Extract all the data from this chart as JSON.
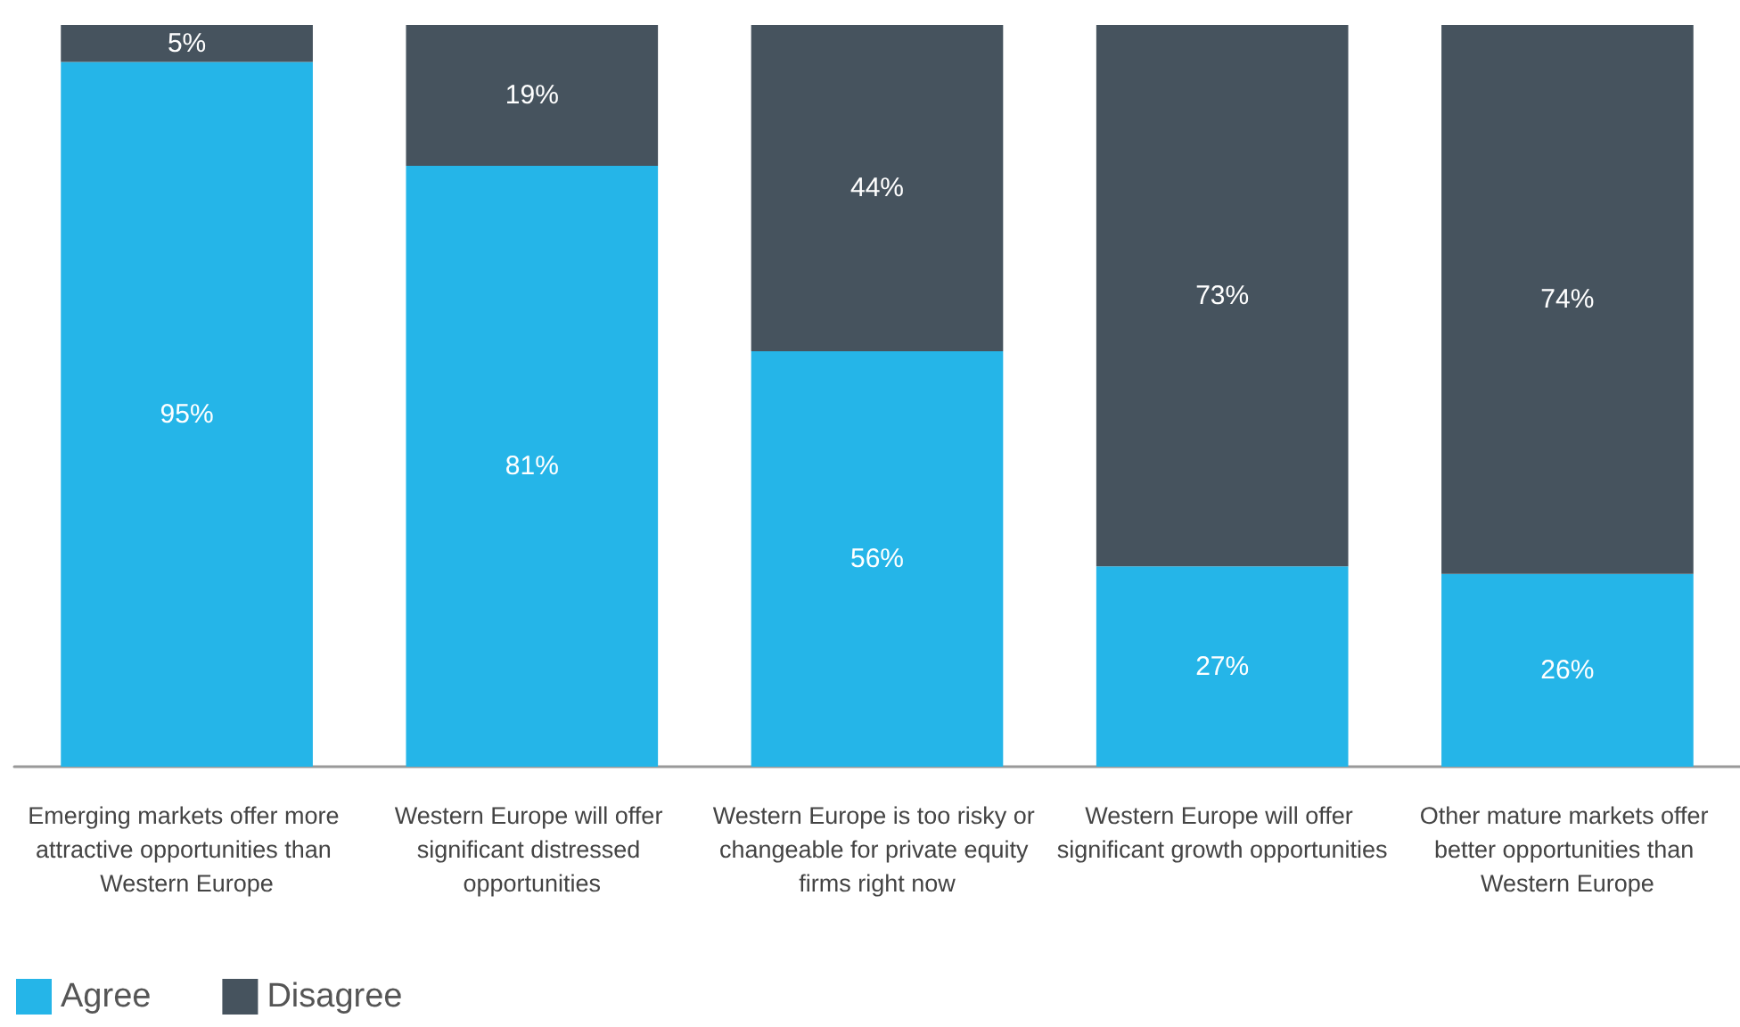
{
  "chart_data": {
    "type": "bar",
    "stacked": true,
    "categories": [
      "Emerging markets offer more attractive opportunities than Western Europe",
      "Western Europe will offer significant distressed opportunities",
      "Western Europe is too risky or changeable for private equity firms right now",
      "Western Europe will offer significant growth opportunities",
      "Other mature markets offer better opportunities than Western Europe"
    ],
    "series": [
      {
        "name": "Agree",
        "color": "#25b5e8",
        "values": [
          95,
          81,
          56,
          27,
          26
        ],
        "value_labels": [
          "95%",
          "81%",
          "56%",
          "27%",
          "26%"
        ]
      },
      {
        "name": "Disagree",
        "color": "#46535e",
        "values": [
          5,
          19,
          44,
          73,
          74
        ],
        "value_labels": [
          "5%",
          "19%",
          "44%",
          "73%",
          "74%"
        ]
      }
    ],
    "legend": "bottom left"
  }
}
